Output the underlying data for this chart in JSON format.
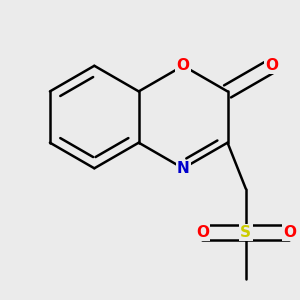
{
  "bg_color": "#ebebeb",
  "bond_color": "#000000",
  "bond_width": 1.8,
  "atom_colors": {
    "O": "#ff0000",
    "N": "#0000cc",
    "S": "#cccc00"
  },
  "font_size_atom": 11,
  "scale": 0.28,
  "bcx": -0.3,
  "bcy": 0.18
}
